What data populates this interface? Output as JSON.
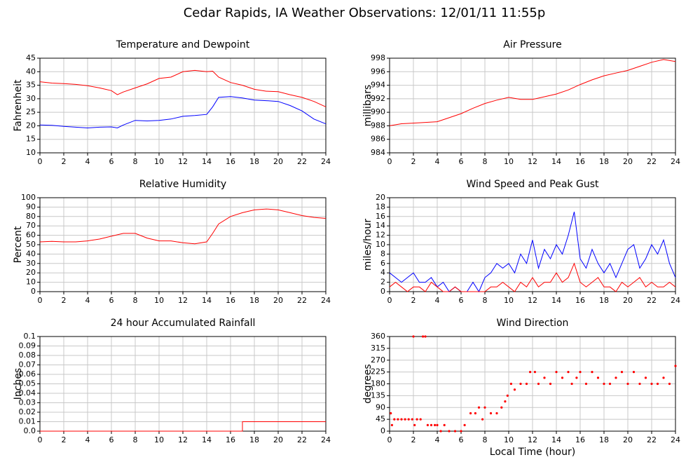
{
  "title": "Cedar Rapids, IA Weather Observations: 12/01/11 11:55p",
  "chart_data": [
    {
      "type": "line",
      "title": "Temperature and Dewpoint",
      "ylabel": "Fahrenheit",
      "grid": true,
      "x": [
        0,
        1,
        2,
        3,
        4,
        5,
        6,
        6.5,
        7,
        8,
        9,
        10,
        11,
        12,
        13,
        14,
        14.5,
        15,
        16,
        17,
        18,
        19,
        20,
        21,
        22,
        23,
        24
      ],
      "series": [
        {
          "name": "Temperature",
          "color": "#ff0000",
          "values": [
            36.3,
            35.8,
            35.6,
            35.3,
            34.8,
            34,
            33,
            31.5,
            32.5,
            34,
            35.5,
            37.5,
            38,
            40,
            40.5,
            40,
            40.2,
            38,
            36,
            35,
            33.5,
            32.8,
            32.6,
            31.5,
            30.5,
            29,
            27
          ]
        },
        {
          "name": "Dewpoint",
          "color": "#0000ff",
          "values": [
            20.3,
            20.2,
            19.8,
            19.5,
            19.2,
            19.5,
            19.6,
            19.2,
            20.3,
            22,
            21.8,
            22,
            22.5,
            23.5,
            23.8,
            24.2,
            27,
            30.5,
            30.8,
            30.3,
            29.5,
            29.3,
            29,
            27.5,
            25.5,
            22.5,
            20.7
          ]
        }
      ],
      "xlim": [
        0,
        24
      ],
      "xticks": [
        0,
        2,
        4,
        6,
        8,
        10,
        12,
        14,
        16,
        18,
        20,
        22,
        24
      ],
      "ylim": [
        10,
        45
      ],
      "yticks": [
        10,
        15,
        20,
        25,
        30,
        35,
        40,
        45
      ]
    },
    {
      "type": "line",
      "title": "Air Pressure",
      "ylabel": "millibars",
      "grid": true,
      "x": [
        0,
        1,
        2,
        3,
        4,
        5,
        6,
        7,
        8,
        9,
        10,
        11,
        12,
        13,
        14,
        15,
        16,
        17,
        18,
        19,
        20,
        21,
        22,
        23,
        24
      ],
      "series": [
        {
          "name": "Pressure",
          "color": "#ff0000",
          "values": [
            988,
            988.3,
            988.4,
            988.5,
            988.6,
            989.2,
            989.8,
            990.6,
            991.3,
            991.8,
            992.2,
            991.9,
            991.9,
            992.3,
            992.7,
            993.3,
            994.1,
            994.8,
            995.4,
            995.8,
            996.2,
            996.8,
            997.4,
            997.8,
            997.5
          ]
        }
      ],
      "xlim": [
        0,
        24
      ],
      "xticks": [
        0,
        2,
        4,
        6,
        8,
        10,
        12,
        14,
        16,
        18,
        20,
        22,
        24
      ],
      "ylim": [
        984,
        998
      ],
      "yticks": [
        984,
        986,
        988,
        990,
        992,
        994,
        996,
        998
      ]
    },
    {
      "type": "line",
      "title": "Relative Humidity",
      "ylabel": "Percent",
      "grid": true,
      "x": [
        0,
        1,
        2,
        3,
        4,
        5,
        6,
        7,
        8,
        9,
        10,
        11,
        12,
        13,
        14,
        14.5,
        15,
        16,
        17,
        18,
        19,
        20,
        21,
        22,
        23,
        24
      ],
      "series": [
        {
          "name": "Humidity",
          "color": "#ff0000",
          "values": [
            53,
            53.5,
            53,
            53,
            54,
            56,
            59,
            62,
            62,
            57,
            54,
            54,
            52,
            51,
            53,
            62,
            72,
            80,
            84,
            87,
            88,
            87,
            84,
            81,
            79,
            78
          ]
        }
      ],
      "xlim": [
        0,
        24
      ],
      "xticks": [
        0,
        2,
        4,
        6,
        8,
        10,
        12,
        14,
        16,
        18,
        20,
        22,
        24
      ],
      "ylim": [
        0,
        100
      ],
      "yticks": [
        0,
        10,
        20,
        30,
        40,
        50,
        60,
        70,
        80,
        90,
        100
      ]
    },
    {
      "type": "line",
      "title": "Wind Speed and Peak Gust",
      "ylabel": "miles/hour",
      "grid": true,
      "x": [
        0,
        0.5,
        1,
        1.5,
        2,
        2.5,
        3,
        3.5,
        4,
        4.5,
        5,
        5.5,
        6,
        6.5,
        7,
        7.5,
        8,
        8.5,
        9,
        9.5,
        10,
        10.5,
        11,
        11.5,
        12,
        12.5,
        13,
        13.5,
        14,
        14.5,
        15,
        15.5,
        16,
        16.5,
        17,
        17.5,
        18,
        18.5,
        19,
        19.5,
        20,
        20.5,
        21,
        21.5,
        22,
        22.5,
        23,
        23.5,
        24
      ],
      "series": [
        {
          "name": "Peak Gust",
          "color": "#0000ff",
          "values": [
            4,
            3,
            2,
            3,
            4,
            2,
            2,
            3,
            1,
            2,
            0,
            1,
            0,
            0,
            2,
            0,
            3,
            4,
            6,
            5,
            6,
            4,
            8,
            6,
            11,
            5,
            9,
            7,
            10,
            8,
            12,
            17,
            7,
            5,
            9,
            6,
            4,
            6,
            3,
            6,
            9,
            10,
            5,
            7,
            10,
            8,
            11,
            6,
            3
          ]
        },
        {
          "name": "Wind Speed",
          "color": "#ff0000",
          "values": [
            1,
            2,
            1,
            0,
            1,
            1,
            0,
            2,
            1,
            0,
            0,
            1,
            0,
            0,
            0,
            0,
            0,
            1,
            1,
            2,
            1,
            0,
            2,
            1,
            3,
            1,
            2,
            2,
            4,
            2,
            3,
            6,
            2,
            1,
            2,
            3,
            1,
            1,
            0,
            2,
            1,
            2,
            3,
            1,
            2,
            1,
            1,
            2,
            1
          ]
        }
      ],
      "xlim": [
        0,
        24
      ],
      "xticks": [
        0,
        2,
        4,
        6,
        8,
        10,
        12,
        14,
        16,
        18,
        20,
        22,
        24
      ],
      "ylim": [
        0,
        20
      ],
      "yticks": [
        0,
        2,
        4,
        6,
        8,
        10,
        12,
        14,
        16,
        18,
        20
      ]
    },
    {
      "type": "line",
      "title": "24 hour Accumulated Rainfall",
      "ylabel": "Inches",
      "grid": true,
      "x": [
        0,
        17,
        17,
        24
      ],
      "series": [
        {
          "name": "Rainfall",
          "color": "#ff0000",
          "values": [
            0,
            0,
            0.01,
            0.01
          ]
        }
      ],
      "xlim": [
        0,
        24
      ],
      "xticks": [
        0,
        2,
        4,
        6,
        8,
        10,
        12,
        14,
        16,
        18,
        20,
        22,
        24
      ],
      "ylim": [
        0,
        0.1
      ],
      "yticks": [
        {
          "value": 0,
          "label": "0.0"
        },
        0.01,
        0.02,
        0.03,
        0.04,
        0.05,
        0.06,
        0.07,
        0.08,
        0.09,
        0.1
      ]
    },
    {
      "type": "scatter",
      "title": "Wind Direction",
      "ylabel": "degrees",
      "xlabel": "Local Time (hour)",
      "grid": true,
      "x": [
        0.1,
        0.2,
        0.4,
        0.7,
        1,
        1.3,
        1.6,
        1.9,
        2,
        2.1,
        2.3,
        2.6,
        2.8,
        3,
        3.2,
        3.5,
        3.8,
        4,
        4.3,
        4.6,
        5,
        5.5,
        6,
        6.3,
        6.8,
        7.2,
        7.5,
        7.8,
        8,
        8.5,
        9,
        9.4,
        9.7,
        9.9,
        10.2,
        10.5,
        11,
        11.5,
        11.8,
        12.2,
        12.5,
        13,
        13.5,
        14,
        14.5,
        15,
        15.3,
        15.7,
        16,
        16.5,
        17,
        17.5,
        18,
        18.5,
        19,
        19.5,
        20,
        20.5,
        21,
        21.5,
        22,
        22.5,
        23,
        23.5,
        24
      ],
      "series": [
        {
          "name": "Direction",
          "color": "#ff0000",
          "values": [
            68,
            23,
            45,
            45,
            45,
            45,
            45,
            45,
            360,
            23,
            45,
            45,
            360,
            360,
            23,
            23,
            23,
            23,
            0,
            23,
            0,
            0,
            0,
            23,
            68,
            68,
            90,
            45,
            90,
            68,
            68,
            90,
            113,
            135,
            180,
            158,
            180,
            180,
            225,
            225,
            180,
            203,
            180,
            225,
            203,
            225,
            180,
            203,
            225,
            180,
            225,
            203,
            180,
            180,
            203,
            225,
            180,
            225,
            180,
            203,
            180,
            180,
            203,
            180,
            248
          ]
        }
      ],
      "xlim": [
        0,
        24
      ],
      "xticks": [
        0,
        2,
        4,
        6,
        8,
        10,
        12,
        14,
        16,
        18,
        20,
        22,
        24
      ],
      "ylim": [
        0,
        360
      ],
      "yticks": [
        0,
        45,
        90,
        135,
        180,
        225,
        270,
        315,
        360
      ]
    }
  ]
}
